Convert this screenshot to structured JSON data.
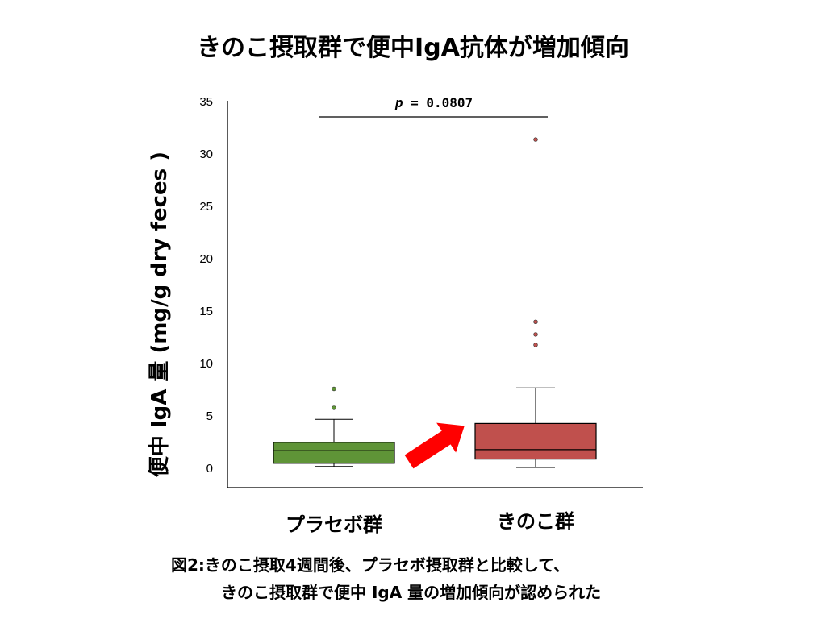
{
  "title": "きのこ摂取群で便中IgA抗体が増加傾向",
  "caption": {
    "line1": "図2:きのこ摂取4週間後、プラセボ摂取群と比較して、",
    "line2": "きのこ摂取群で便中 IgA 量の増加傾向が認められた"
  },
  "chart_data": {
    "type": "box",
    "ylabel": "便中 IgA 量 (mg/g dry feces )",
    "ylim": [
      0,
      35
    ],
    "yticks": [
      0,
      5,
      10,
      15,
      20,
      25,
      30,
      35
    ],
    "grid": false,
    "p_value_label": "p = 0.0807",
    "categories": [
      "プラセボ群",
      "きのこ群"
    ],
    "series": [
      {
        "category": "プラセボ群",
        "color": "#5f9437",
        "min": 0.1,
        "q1": 0.4,
        "median": 1.6,
        "q3": 2.4,
        "max": 4.6,
        "outliers": [
          5.7,
          7.5
        ]
      },
      {
        "category": "きのこ群",
        "color": "#c0504d",
        "min": 0.0,
        "q1": 0.8,
        "median": 1.7,
        "q3": 4.2,
        "max": 7.6,
        "outliers": [
          11.7,
          12.7,
          13.9,
          31.3
        ]
      }
    ],
    "annotation": {
      "type": "arrow",
      "color": "#ff0000",
      "direction": "from placebo to mushroom"
    }
  }
}
